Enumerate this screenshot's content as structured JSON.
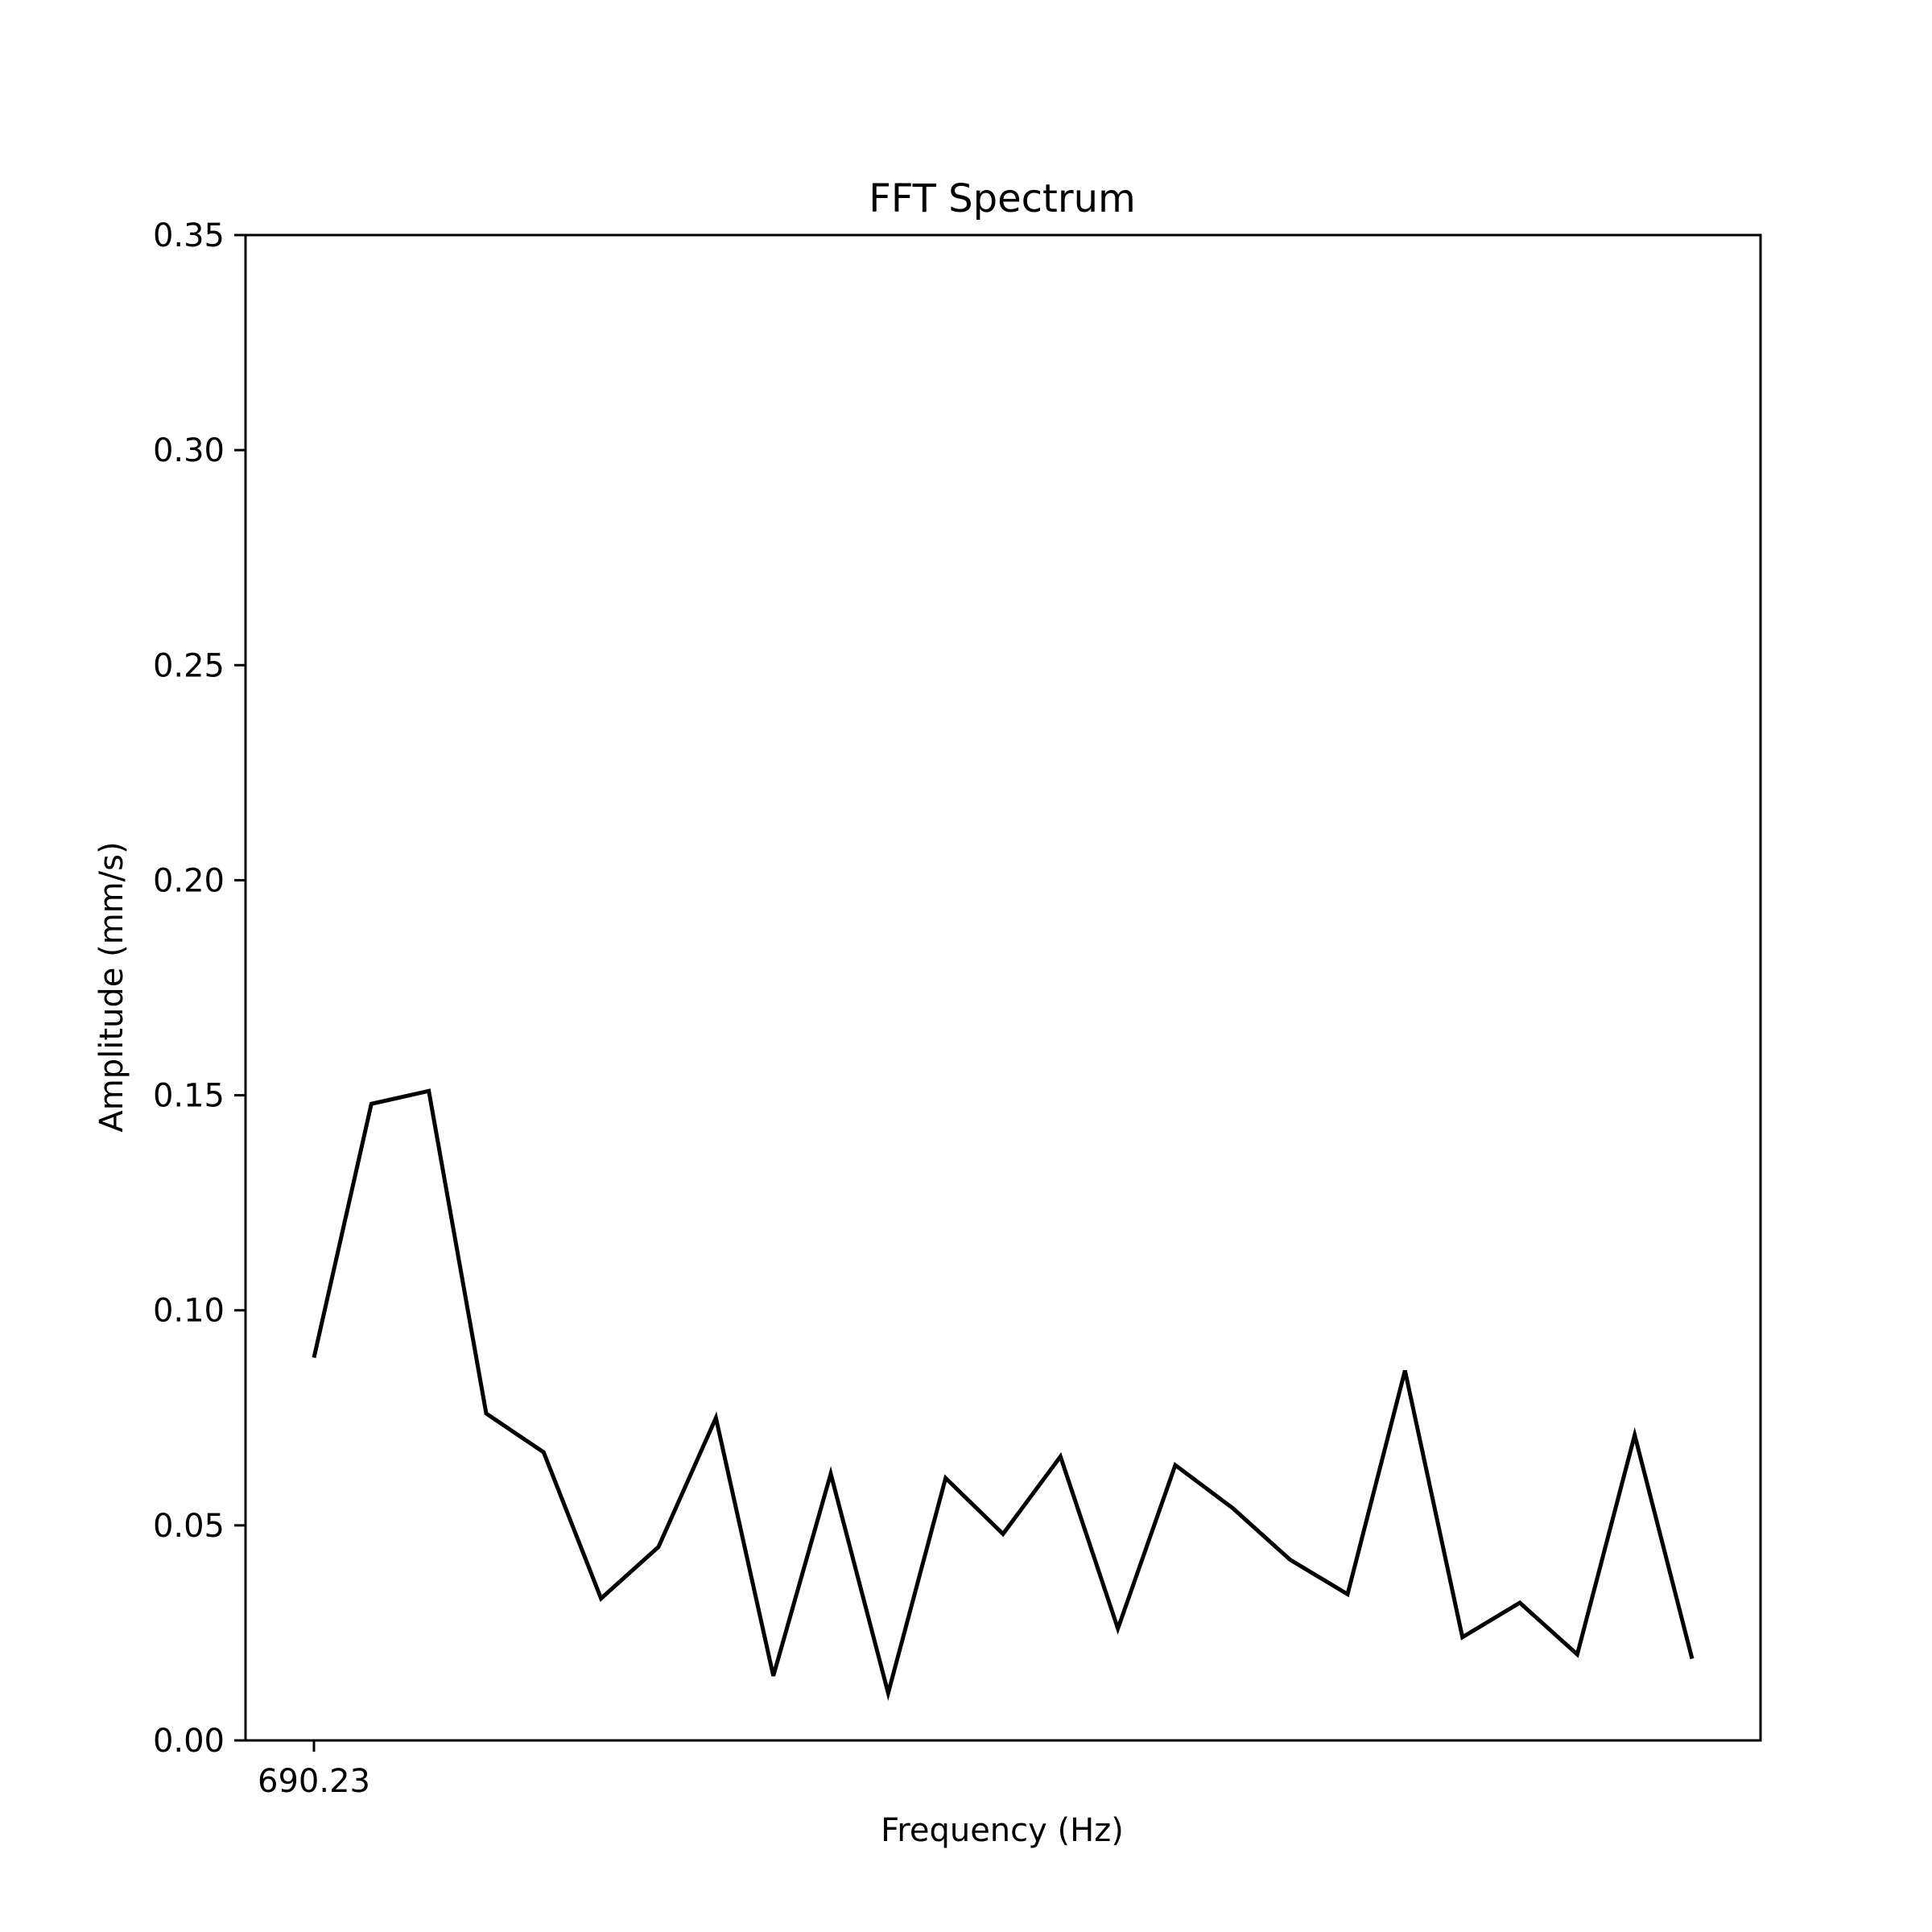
{
  "chart_data": {
    "type": "line",
    "title": "FFT Spectrum",
    "xlabel": "Frequency (Hz)",
    "ylabel": "Amplitude (mm/s)",
    "x_tick_labels": [
      "690.23"
    ],
    "y_ticks": [
      "0.00",
      "0.05",
      "0.10",
      "0.15",
      "0.20",
      "0.25",
      "0.30",
      "0.35"
    ],
    "ylim": [
      0,
      0.35
    ],
    "grid": false,
    "line_color": "#000000",
    "series": [
      {
        "values": [
          0.089,
          0.148,
          0.151,
          0.076,
          0.067,
          0.033,
          0.045,
          0.075,
          0.015,
          0.062,
          0.011,
          0.061,
          0.048,
          0.066,
          0.026,
          0.064,
          0.054,
          0.042,
          0.034,
          0.086,
          0.024,
          0.032,
          0.02,
          0.071,
          0.019
        ]
      }
    ]
  }
}
